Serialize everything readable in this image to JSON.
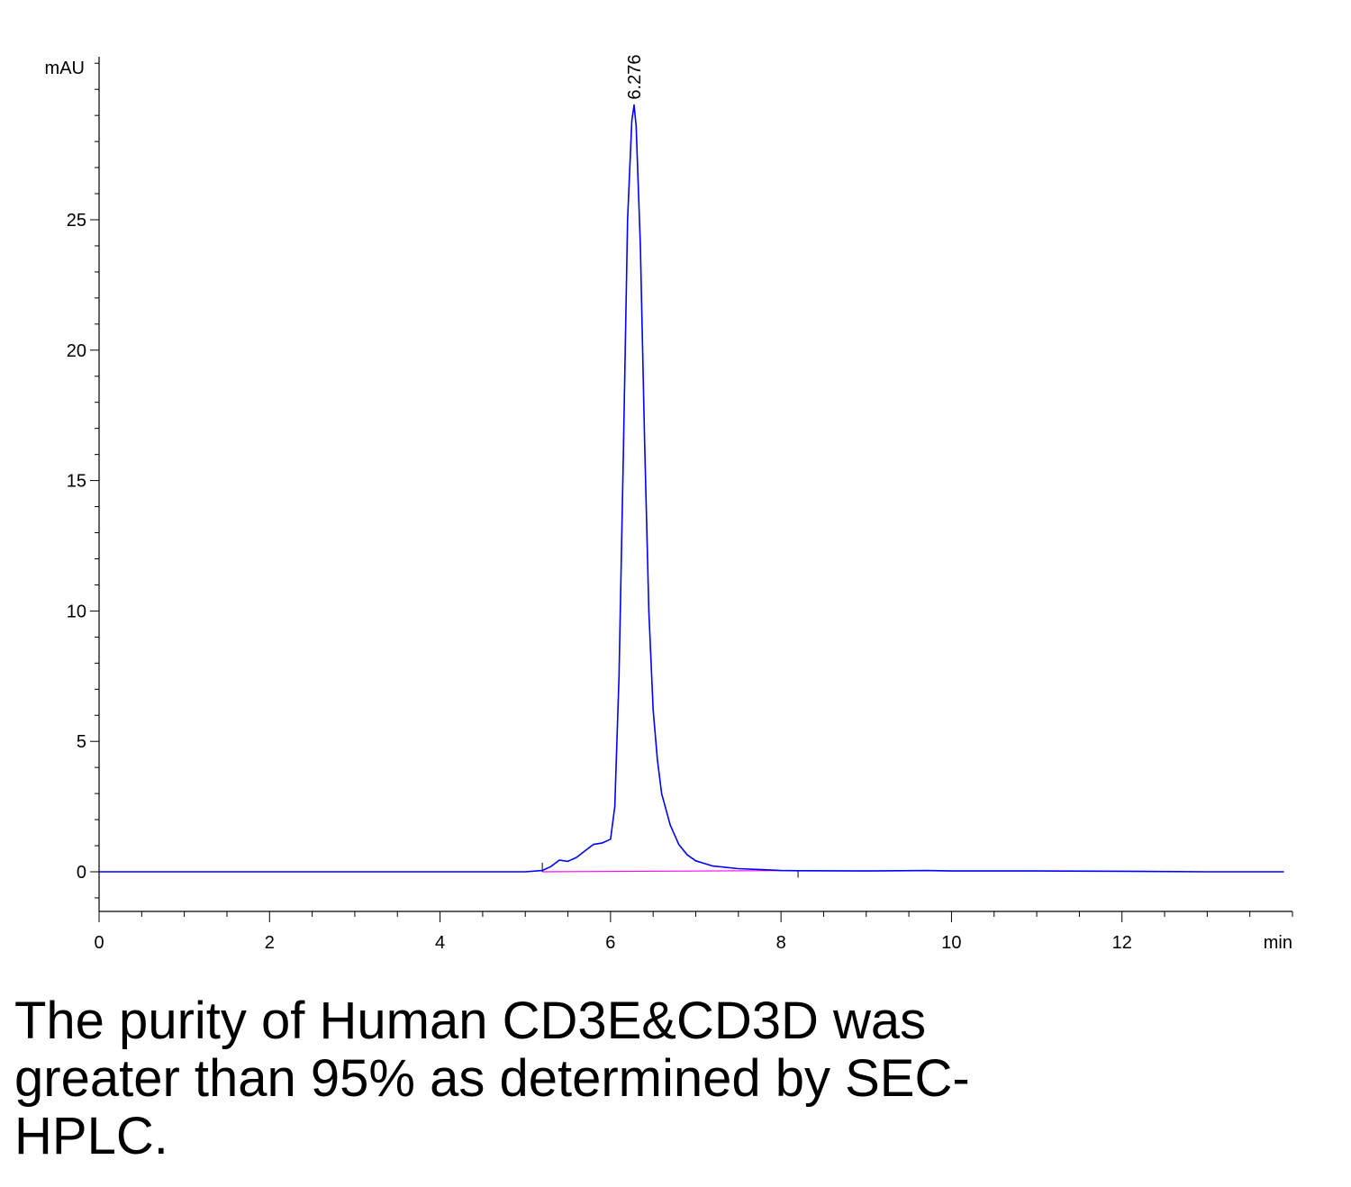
{
  "chart_data": {
    "type": "line",
    "y_unit_label": "mAU",
    "x_unit_label": "min",
    "xlim": [
      0,
      14
    ],
    "ylim": [
      -1.5,
      31
    ],
    "x_ticks": [
      0,
      2,
      4,
      6,
      8,
      10,
      12
    ],
    "y_ticks": [
      0,
      5,
      10,
      15,
      20,
      25
    ],
    "peak_label": "6.276",
    "peak": {
      "x": 6.276,
      "y": 29.4
    },
    "series": [
      {
        "color": "#0000ff",
        "x": [
          0,
          1,
          2,
          3,
          4,
          4.5,
          5.0,
          5.2,
          5.3,
          5.4,
          5.5,
          5.6,
          5.7,
          5.8,
          5.9,
          6.0,
          6.05,
          6.1,
          6.15,
          6.2,
          6.25,
          6.276,
          6.3,
          6.35,
          6.4,
          6.45,
          6.5,
          6.55,
          6.6,
          6.7,
          6.8,
          6.9,
          7.0,
          7.2,
          7.5,
          7.8,
          8.0,
          8.2,
          9.0,
          9.7,
          10.0,
          11.0,
          12.0,
          13.0,
          13.5,
          13.9
        ],
        "y": [
          0.0,
          0.0,
          0.0,
          0.0,
          0.0,
          0.0,
          0.0,
          0.05,
          0.2,
          0.45,
          0.4,
          0.55,
          0.8,
          1.05,
          1.1,
          1.25,
          2.5,
          7.5,
          16.0,
          25.0,
          28.8,
          29.4,
          28.6,
          24.0,
          16.5,
          10.0,
          6.2,
          4.3,
          3.0,
          1.8,
          1.05,
          0.65,
          0.42,
          0.22,
          0.12,
          0.08,
          0.05,
          0.04,
          0.03,
          0.05,
          0.03,
          0.03,
          0.02,
          0.0,
          0.0,
          0.0
        ]
      }
    ],
    "baseline": {
      "color": "#ff00ff",
      "x": [
        5.2,
        8.2
      ],
      "y": [
        0.0,
        0.05
      ]
    }
  },
  "caption": "The purity of Human CD3E&CD3D was greater than 95% as determined by SEC-HPLC."
}
